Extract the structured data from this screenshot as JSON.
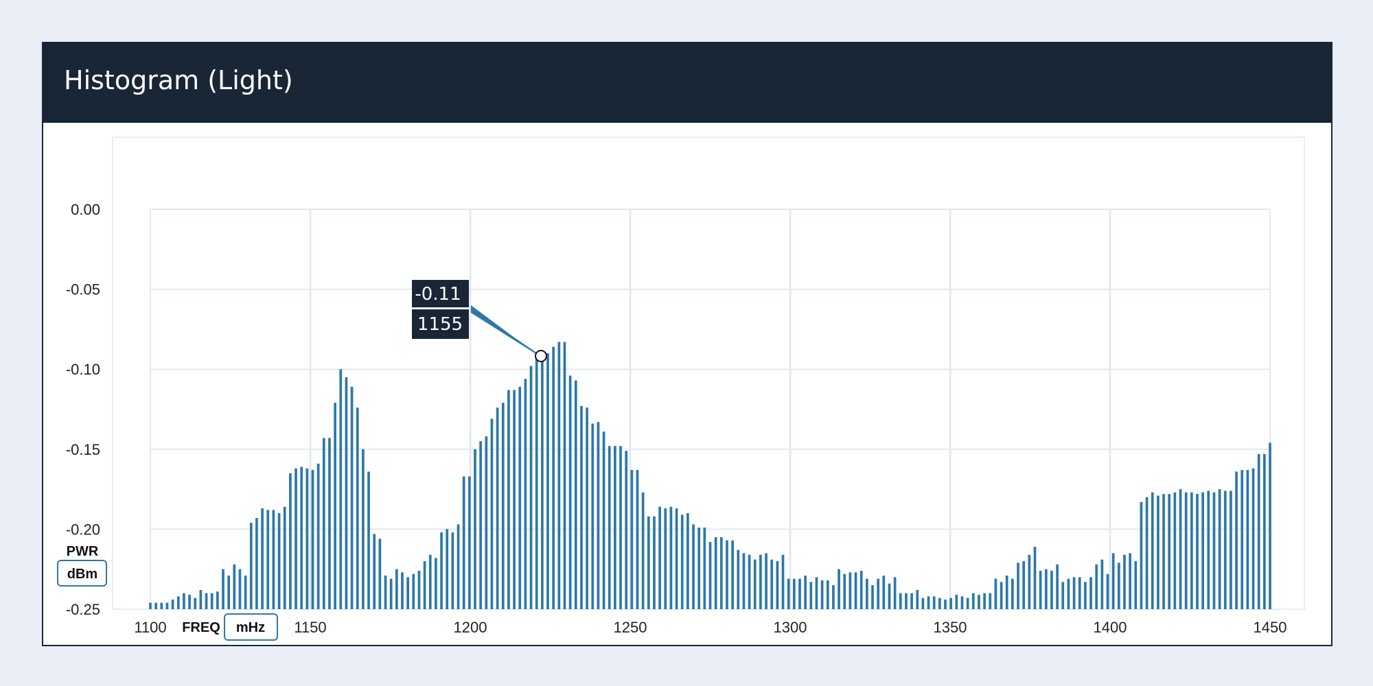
{
  "panel": {
    "title": "Histogram (Light)"
  },
  "x_unit_label": "FREQ",
  "x_unit_button": "mHz",
  "y_unit_label": "PWR",
  "y_unit_button": "dBm",
  "tooltip": {
    "value": "-0.11",
    "label": "1155"
  },
  "colors": {
    "bar": "#2e78a8",
    "header": "#182636",
    "grid": "#e3e8f0",
    "tooltip_bg": "#182636"
  },
  "chart_data": {
    "type": "bar",
    "title": "",
    "xlabel": "FREQ",
    "ylabel": "PWR",
    "xlim": [
      1100,
      1450
    ],
    "x_ticks": [
      1100,
      1150,
      1200,
      1250,
      1300,
      1350,
      1400,
      1450
    ],
    "y_ticks": [
      "0.00",
      "-0.05",
      "-0.10",
      "-0.15",
      "-0.20",
      "-0.25"
    ],
    "y_tick_positions": [
      0.0,
      -0.05,
      -0.1,
      -0.15,
      -0.2,
      -0.25
    ],
    "ylim": [
      -0.25,
      0.0
    ],
    "bar_width_units": 1.6,
    "series": [
      {
        "values": [
          -0.246,
          -0.246,
          -0.246,
          -0.246,
          -0.244,
          -0.242,
          -0.24,
          -0.241,
          -0.243,
          -0.238,
          -0.24,
          -0.24,
          -0.239,
          -0.225,
          -0.229,
          -0.222,
          -0.225,
          -0.229,
          -0.196,
          -0.193,
          -0.187,
          -0.188,
          -0.188,
          -0.19,
          -0.186,
          -0.165,
          -0.162,
          -0.161,
          -0.162,
          -0.163,
          -0.159,
          -0.143,
          -0.143,
          -0.121,
          -0.1,
          -0.105,
          -0.111,
          -0.124,
          -0.15,
          -0.164,
          -0.203,
          -0.206,
          -0.229,
          -0.231,
          -0.225,
          -0.227,
          -0.23,
          -0.228,
          -0.226,
          -0.22,
          -0.216,
          -0.218,
          -0.202,
          -0.2,
          -0.202,
          -0.197,
          -0.167,
          -0.167,
          -0.15,
          -0.145,
          -0.142,
          -0.131,
          -0.124,
          -0.121,
          -0.113,
          -0.113,
          -0.111,
          -0.106,
          -0.098,
          -0.093,
          -0.093,
          -0.09,
          -0.086,
          -0.083,
          -0.083,
          -0.104,
          -0.107,
          -0.123,
          -0.124,
          -0.134,
          -0.133,
          -0.139,
          -0.148,
          -0.148,
          -0.148,
          -0.151,
          -0.163,
          -0.163,
          -0.177,
          -0.192,
          -0.192,
          -0.186,
          -0.187,
          -0.186,
          -0.187,
          -0.191,
          -0.19,
          -0.197,
          -0.199,
          -0.199,
          -0.208,
          -0.205,
          -0.205,
          -0.207,
          -0.207,
          -0.213,
          -0.215,
          -0.216,
          -0.219,
          -0.216,
          -0.215,
          -0.219,
          -0.22,
          -0.216,
          -0.231,
          -0.231,
          -0.231,
          -0.229,
          -0.233,
          -0.23,
          -0.232,
          -0.232,
          -0.235,
          -0.225,
          -0.228,
          -0.227,
          -0.227,
          -0.226,
          -0.231,
          -0.235,
          -0.231,
          -0.229,
          -0.234,
          -0.23,
          -0.24,
          -0.24,
          -0.24,
          -0.238,
          -0.243,
          -0.242,
          -0.242,
          -0.243,
          -0.244,
          -0.243,
          -0.241,
          -0.242,
          -0.243,
          -0.24,
          -0.241,
          -0.24,
          -0.24,
          -0.231,
          -0.233,
          -0.229,
          -0.231,
          -0.221,
          -0.22,
          -0.216,
          -0.211,
          -0.226,
          -0.225,
          -0.226,
          -0.222,
          -0.233,
          -0.231,
          -0.23,
          -0.23,
          -0.233,
          -0.23,
          -0.222,
          -0.219,
          -0.228,
          -0.215,
          -0.221,
          -0.216,
          -0.215,
          -0.22,
          -0.183,
          -0.18,
          -0.177,
          -0.179,
          -0.178,
          -0.178,
          -0.177,
          -0.175,
          -0.177,
          -0.177,
          -0.178,
          -0.177,
          -0.176,
          -0.177,
          -0.175,
          -0.176,
          -0.176,
          -0.164,
          -0.163,
          -0.163,
          -0.162,
          -0.153,
          -0.153,
          -0.146
        ]
      }
    ],
    "grid": true
  }
}
